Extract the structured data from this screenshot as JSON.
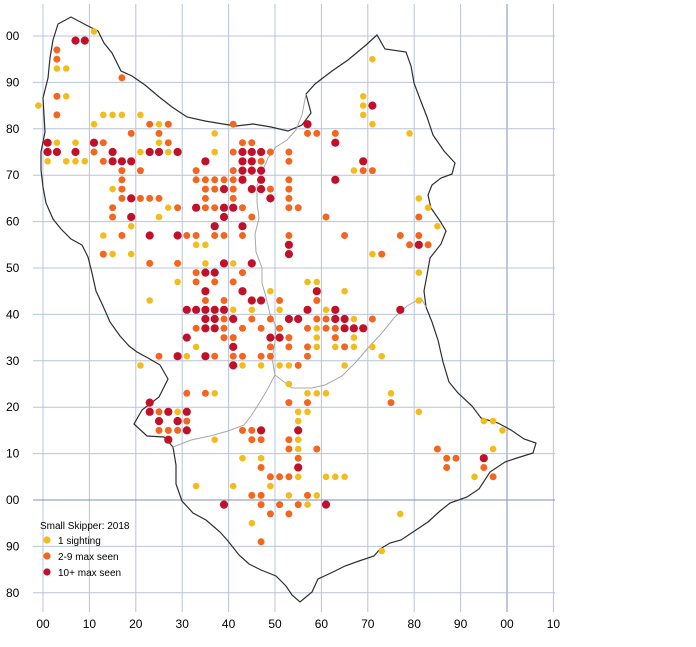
{
  "map": {
    "title": "Small Skipper:  2018",
    "y_axis_labels": [
      "00",
      "90",
      "80",
      "70",
      "60",
      "50",
      "40",
      "30",
      "20",
      "10",
      "00",
      "90",
      "80"
    ],
    "x_axis_labels": [
      "00",
      "10",
      "20",
      "30",
      "40",
      "50",
      "60",
      "70",
      "80",
      "90",
      "00",
      "10"
    ],
    "colors": {
      "grid": "#b8c4dc",
      "grid_major": "#7f8fbf",
      "boundary": "#2e2e2e",
      "sub_boundary": "#a8a8a8",
      "one": "#f2bd1c",
      "mid": "#f2661f",
      "high": "#c0102a"
    }
  },
  "legend": {
    "items": [
      {
        "label": "1 sighting",
        "category": "one"
      },
      {
        "label": "2-9 max seen",
        "category": "mid"
      },
      {
        "label": "10+ max seen",
        "category": "high"
      }
    ]
  },
  "sightings": {
    "one": [
      [
        -1,
        85
      ],
      [
        3,
        93
      ],
      [
        5,
        93
      ],
      [
        5,
        87
      ],
      [
        11,
        101
      ],
      [
        13,
        83
      ],
      [
        11,
        81
      ],
      [
        15,
        83
      ],
      [
        17,
        83
      ],
      [
        21,
        83
      ],
      [
        25,
        81
      ],
      [
        3,
        77
      ],
      [
        7,
        77
      ],
      [
        1,
        73
      ],
      [
        5,
        73
      ],
      [
        7,
        73
      ],
      [
        9,
        73
      ],
      [
        13,
        73
      ],
      [
        21,
        75
      ],
      [
        25,
        77
      ],
      [
        27,
        75
      ],
      [
        37,
        79
      ],
      [
        37,
        75
      ],
      [
        15,
        67
      ],
      [
        19,
        65
      ],
      [
        21,
        65
      ],
      [
        27,
        63
      ],
      [
        33,
        63
      ],
      [
        25,
        61
      ],
      [
        13,
        57
      ],
      [
        19,
        59
      ],
      [
        15,
        53
      ],
      [
        19,
        53
      ],
      [
        23,
        43
      ],
      [
        29,
        47
      ],
      [
        33,
        55
      ],
      [
        35,
        55
      ],
      [
        35,
        51
      ],
      [
        39,
        51
      ],
      [
        41,
        51
      ],
      [
        43,
        45
      ],
      [
        41,
        41
      ],
      [
        45,
        41
      ],
      [
        49,
        45
      ],
      [
        51,
        41
      ],
      [
        33,
        33
      ],
      [
        35,
        31
      ],
      [
        31,
        31
      ],
      [
        41,
        31
      ],
      [
        43,
        29
      ],
      [
        47,
        29
      ],
      [
        51,
        29
      ],
      [
        53,
        29
      ],
      [
        21,
        29
      ],
      [
        35,
        23
      ],
      [
        37,
        23
      ],
      [
        29,
        19
      ],
      [
        37,
        13
      ],
      [
        33,
        3
      ],
      [
        41,
        3
      ],
      [
        43,
        9
      ],
      [
        43,
        15
      ],
      [
        47,
        9
      ],
      [
        49,
        3
      ],
      [
        45,
        -5
      ],
      [
        51,
        -1
      ],
      [
        53,
        1
      ],
      [
        55,
        5
      ],
      [
        55,
        11
      ],
      [
        55,
        13
      ],
      [
        55,
        17
      ],
      [
        55,
        19
      ],
      [
        57,
        19
      ],
      [
        53,
        25
      ],
      [
        57,
        23
      ],
      [
        59,
        23
      ],
      [
        61,
        23
      ],
      [
        59,
        33
      ],
      [
        59,
        35
      ],
      [
        59,
        37
      ],
      [
        61,
        41
      ],
      [
        57,
        47
      ],
      [
        59,
        47
      ],
      [
        63,
        33
      ],
      [
        67,
        33
      ],
      [
        67,
        35
      ],
      [
        69,
        37
      ],
      [
        71,
        39
      ],
      [
        71,
        33
      ],
      [
        73,
        31
      ],
      [
        65,
        29
      ],
      [
        61,
        5
      ],
      [
        63,
        5
      ],
      [
        65,
        5
      ],
      [
        59,
        1
      ],
      [
        61,
        -1
      ],
      [
        57,
        -1
      ],
      [
        67,
        39
      ],
      [
        65,
        45
      ],
      [
        69,
        87
      ],
      [
        71,
        95
      ],
      [
        69,
        85
      ],
      [
        69,
        83
      ],
      [
        71,
        81
      ],
      [
        79,
        79
      ],
      [
        67,
        71
      ],
      [
        71,
        53
      ],
      [
        81,
        65
      ],
      [
        83,
        63
      ],
      [
        85,
        59
      ],
      [
        81,
        49
      ],
      [
        81,
        43
      ],
      [
        75,
        23
      ],
      [
        81,
        19
      ],
      [
        95,
        17
      ],
      [
        97,
        17
      ],
      [
        99,
        15
      ],
      [
        97,
        11
      ],
      [
        93,
        5
      ],
      [
        77,
        -3
      ],
      [
        73,
        -11
      ],
      [
        37,
        75
      ]
    ],
    "mid": [
      [
        3,
        97
      ],
      [
        3,
        95
      ],
      [
        7,
        99
      ],
      [
        3,
        87
      ],
      [
        3,
        83
      ],
      [
        17,
        91
      ],
      [
        13,
        77
      ],
      [
        11,
        75
      ],
      [
        15,
        75
      ],
      [
        13,
        73
      ],
      [
        19,
        73
      ],
      [
        17,
        71
      ],
      [
        17,
        69
      ],
      [
        17,
        67
      ],
      [
        17,
        65
      ],
      [
        15,
        63
      ],
      [
        19,
        79
      ],
      [
        23,
        81
      ],
      [
        27,
        81
      ],
      [
        25,
        79
      ],
      [
        27,
        77
      ],
      [
        25,
        75
      ],
      [
        23,
        75
      ],
      [
        21,
        71
      ],
      [
        21,
        65
      ],
      [
        23,
        65
      ],
      [
        25,
        65
      ],
      [
        15,
        61
      ],
      [
        17,
        57
      ],
      [
        23,
        57
      ],
      [
        29,
        63
      ],
      [
        31,
        57
      ],
      [
        33,
        57
      ],
      [
        13,
        53
      ],
      [
        23,
        51
      ],
      [
        29,
        51
      ],
      [
        33,
        71
      ],
      [
        33,
        69
      ],
      [
        35,
        69
      ],
      [
        35,
        67
      ],
      [
        35,
        65
      ],
      [
        35,
        63
      ],
      [
        37,
        69
      ],
      [
        37,
        67
      ],
      [
        37,
        63
      ],
      [
        39,
        69
      ],
      [
        41,
        71
      ],
      [
        41,
        69
      ],
      [
        41,
        67
      ],
      [
        41,
        65
      ],
      [
        43,
        63
      ],
      [
        39,
        61
      ],
      [
        41,
        75
      ],
      [
        43,
        77
      ],
      [
        45,
        77
      ],
      [
        45,
        75
      ],
      [
        47,
        75
      ],
      [
        47,
        73
      ],
      [
        49,
        75
      ],
      [
        53,
        75
      ],
      [
        53,
        73
      ],
      [
        53,
        69
      ],
      [
        53,
        67
      ],
      [
        53,
        65
      ],
      [
        53,
        63
      ],
      [
        49,
        67
      ],
      [
        45,
        61
      ],
      [
        41,
        81
      ],
      [
        63,
        79
      ],
      [
        59,
        79
      ],
      [
        57,
        79
      ],
      [
        55,
        63
      ],
      [
        61,
        61
      ],
      [
        53,
        57
      ],
      [
        37,
        57
      ],
      [
        39,
        57
      ],
      [
        43,
        57
      ],
      [
        39,
        43
      ],
      [
        39,
        39
      ],
      [
        39,
        37
      ],
      [
        39,
        35
      ],
      [
        33,
        49
      ],
      [
        33,
        47
      ],
      [
        37,
        47
      ],
      [
        41,
        47
      ],
      [
        43,
        49
      ],
      [
        45,
        51
      ],
      [
        51,
        43
      ],
      [
        45,
        39
      ],
      [
        47,
        37
      ],
      [
        49,
        39
      ],
      [
        51,
        37
      ],
      [
        51,
        35
      ],
      [
        55,
        39
      ],
      [
        57,
        41
      ],
      [
        57,
        37
      ],
      [
        57,
        33
      ],
      [
        53,
        35
      ],
      [
        53,
        33
      ],
      [
        57,
        31
      ],
      [
        55,
        29
      ],
      [
        59,
        43
      ],
      [
        59,
        39
      ],
      [
        61,
        39
      ],
      [
        61,
        37
      ],
      [
        63,
        37
      ],
      [
        63,
        35
      ],
      [
        65,
        33
      ],
      [
        71,
        39
      ],
      [
        41,
        35
      ],
      [
        41,
        31
      ],
      [
        43,
        31
      ],
      [
        47,
        31
      ],
      [
        43,
        37
      ],
      [
        49,
        31
      ],
      [
        49,
        33
      ],
      [
        49,
        35
      ],
      [
        35,
        43
      ],
      [
        33,
        41
      ],
      [
        33,
        37
      ],
      [
        37,
        31
      ],
      [
        25,
        31
      ],
      [
        35,
        23
      ],
      [
        31,
        23
      ],
      [
        23,
        21
      ],
      [
        25,
        19
      ],
      [
        25,
        15
      ],
      [
        27,
        15
      ],
      [
        31,
        17
      ],
      [
        29,
        15
      ],
      [
        43,
        15
      ],
      [
        45,
        15
      ],
      [
        45,
        13
      ],
      [
        47,
        13
      ],
      [
        47,
        7
      ],
      [
        49,
        5
      ],
      [
        51,
        5
      ],
      [
        47,
        1
      ],
      [
        45,
        1
      ],
      [
        47,
        -1
      ],
      [
        49,
        -3
      ],
      [
        51,
        -1
      ],
      [
        53,
        -3
      ],
      [
        53,
        5
      ],
      [
        55,
        -1
      ],
      [
        57,
        1
      ],
      [
        53,
        11
      ],
      [
        55,
        9
      ],
      [
        53,
        13
      ],
      [
        55,
        15
      ],
      [
        57,
        21
      ],
      [
        53,
        21
      ],
      [
        59,
        11
      ],
      [
        65,
        57
      ],
      [
        69,
        73
      ],
      [
        69,
        71
      ],
      [
        71,
        71
      ],
      [
        73,
        53
      ],
      [
        77,
        57
      ],
      [
        79,
        55
      ],
      [
        81,
        57
      ],
      [
        81,
        61
      ],
      [
        63,
        41
      ],
      [
        65,
        39
      ],
      [
        47,
        -9
      ],
      [
        75,
        21
      ],
      [
        85,
        11
      ],
      [
        87,
        9
      ],
      [
        87,
        7
      ],
      [
        89,
        9
      ],
      [
        95,
        7
      ],
      [
        97,
        5
      ],
      [
        77,
        41
      ],
      [
        83,
        55
      ],
      [
        45,
        67
      ]
    ],
    "high": [
      [
        7,
        99
      ],
      [
        9,
        99
      ],
      [
        1,
        77
      ],
      [
        1,
        75
      ],
      [
        3,
        75
      ],
      [
        7,
        75
      ],
      [
        11,
        77
      ],
      [
        15,
        75
      ],
      [
        15,
        73
      ],
      [
        17,
        73
      ],
      [
        19,
        73
      ],
      [
        19,
        65
      ],
      [
        19,
        61
      ],
      [
        23,
        75
      ],
      [
        25,
        75
      ],
      [
        29,
        75
      ],
      [
        23,
        57
      ],
      [
        29,
        57
      ],
      [
        31,
        41
      ],
      [
        31,
        35
      ],
      [
        33,
        41
      ],
      [
        35,
        45
      ],
      [
        35,
        49
      ],
      [
        37,
        49
      ],
      [
        35,
        41
      ],
      [
        37,
        41
      ],
      [
        35,
        39
      ],
      [
        37,
        39
      ],
      [
        35,
        37
      ],
      [
        37,
        37
      ],
      [
        39,
        41
      ],
      [
        41,
        39
      ],
      [
        35,
        31
      ],
      [
        29,
        31
      ],
      [
        41,
        33
      ],
      [
        41,
        29
      ],
      [
        43,
        45
      ],
      [
        45,
        43
      ],
      [
        47,
        43
      ],
      [
        39,
        51
      ],
      [
        45,
        51
      ],
      [
        49,
        35
      ],
      [
        51,
        35
      ],
      [
        53,
        39
      ],
      [
        55,
        39
      ],
      [
        57,
        41
      ],
      [
        59,
        45
      ],
      [
        63,
        41
      ],
      [
        65,
        39
      ],
      [
        65,
        37
      ],
      [
        67,
        37
      ],
      [
        69,
        37
      ],
      [
        63,
        39
      ],
      [
        35,
        73
      ],
      [
        43,
        73
      ],
      [
        43,
        75
      ],
      [
        45,
        75
      ],
      [
        47,
        75
      ],
      [
        45,
        73
      ],
      [
        43,
        71
      ],
      [
        43,
        69
      ],
      [
        45,
        71
      ],
      [
        47,
        71
      ],
      [
        47,
        69
      ],
      [
        47,
        67
      ],
      [
        45,
        67
      ],
      [
        39,
        67
      ],
      [
        33,
        63
      ],
      [
        37,
        59
      ],
      [
        41,
        63
      ],
      [
        43,
        59
      ],
      [
        53,
        55
      ],
      [
        53,
        53
      ],
      [
        39,
        63
      ],
      [
        39,
        61
      ],
      [
        49,
        65
      ],
      [
        57,
        81
      ],
      [
        63,
        77
      ],
      [
        63,
        69
      ],
      [
        69,
        73
      ],
      [
        71,
        85
      ],
      [
        81,
        55
      ],
      [
        77,
        41
      ],
      [
        23,
        21
      ],
      [
        23,
        19
      ],
      [
        27,
        19
      ],
      [
        31,
        19
      ],
      [
        31,
        15
      ],
      [
        27,
        13
      ],
      [
        29,
        17
      ],
      [
        25,
        17
      ],
      [
        47,
        15
      ],
      [
        55,
        15
      ],
      [
        55,
        7
      ],
      [
        39,
        -1
      ],
      [
        61,
        -1
      ],
      [
        95,
        9
      ],
      [
        29,
        17
      ]
    ]
  }
}
